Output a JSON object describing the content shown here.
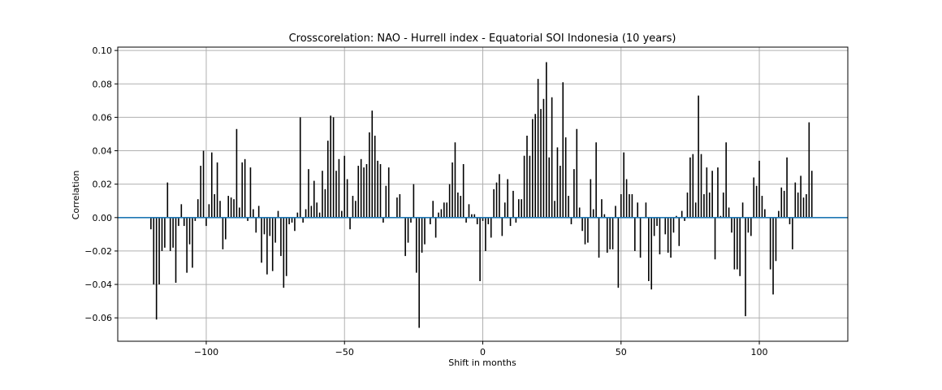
{
  "chart_data": {
    "type": "bar",
    "title": "Crosscorelation: NAO - Hurrell index - Equatorial SOI Indonesia (10 years)",
    "xlabel": "Shift in months",
    "ylabel": "Correlation",
    "xlim": [
      -132,
      132
    ],
    "ylim": [
      -0.074,
      0.102
    ],
    "grid": true,
    "x_ticks": [
      -100,
      -50,
      0,
      50,
      100
    ],
    "x_tick_labels": [
      "−100",
      "−50",
      "0",
      "50",
      "100"
    ],
    "y_ticks": [
      -0.06,
      -0.04,
      -0.02,
      0.0,
      0.02,
      0.04,
      0.06,
      0.08,
      0.1
    ],
    "y_tick_labels": [
      "−0.06",
      "−0.04",
      "−0.02",
      "0.00",
      "0.02",
      "0.04",
      "0.06",
      "0.08",
      "0.10"
    ],
    "bar_color": "#000000",
    "zero_line_color": "#1f77b4",
    "x_start": -120,
    "values": [
      -0.007,
      -0.04,
      -0.061,
      -0.04,
      -0.02,
      -0.018,
      0.021,
      -0.02,
      -0.018,
      -0.039,
      -0.005,
      0.008,
      -0.005,
      -0.033,
      -0.016,
      -0.03,
      -0.002,
      0.011,
      0.031,
      0.04,
      -0.005,
      0.008,
      0.039,
      0.014,
      0.033,
      0.01,
      -0.019,
      -0.013,
      0.013,
      0.012,
      0.011,
      0.053,
      0.006,
      0.033,
      0.035,
      -0.002,
      0.03,
      0.005,
      -0.009,
      0.007,
      -0.027,
      -0.01,
      -0.034,
      -0.011,
      -0.032,
      -0.015,
      0.004,
      -0.023,
      -0.042,
      -0.035,
      -0.004,
      -0.003,
      -0.008,
      0.003,
      0.06,
      -0.003,
      0.005,
      0.029,
      0.007,
      0.022,
      0.009,
      0.003,
      0.028,
      0.017,
      0.046,
      0.061,
      0.06,
      0.028,
      0.035,
      0.004,
      0.037,
      0.023,
      -0.007,
      0.013,
      0.01,
      0.031,
      0.035,
      0.03,
      0.032,
      0.051,
      0.064,
      0.049,
      0.034,
      0.032,
      -0.003,
      0.019,
      0.03,
      0.0,
      0.0,
      0.012,
      0.014,
      0.0,
      -0.023,
      -0.015,
      -0.003,
      0.02,
      -0.033,
      -0.066,
      -0.021,
      -0.016,
      0.0,
      -0.004,
      0.01,
      -0.012,
      0.003,
      0.005,
      0.009,
      0.009,
      0.02,
      0.033,
      0.045,
      0.015,
      0.013,
      0.032,
      -0.003,
      0.008,
      0.002,
      0.002,
      -0.004,
      -0.038,
      -0.002,
      -0.02,
      -0.004,
      -0.012,
      0.017,
      0.021,
      0.026,
      -0.011,
      0.009,
      0.023,
      -0.005,
      0.016,
      -0.003,
      0.011,
      0.011,
      0.037,
      0.049,
      0.037,
      0.059,
      0.062,
      0.083,
      0.065,
      0.071,
      0.093,
      0.036,
      0.072,
      0.01,
      0.042,
      0.031,
      0.081,
      0.048,
      0.013,
      -0.004,
      0.029,
      0.053,
      0.006,
      -0.008,
      -0.016,
      -0.015,
      0.023,
      0.005,
      0.045,
      -0.024,
      0.011,
      0.002,
      -0.021,
      -0.019,
      -0.019,
      0.007,
      -0.042,
      0.014,
      0.039,
      0.023,
      0.014,
      0.014,
      -0.02,
      0.009,
      -0.024,
      0.0,
      0.009,
      -0.038,
      -0.043,
      -0.011,
      -0.005,
      -0.022,
      0.0,
      -0.01,
      -0.021,
      -0.024,
      -0.009,
      0.001,
      -0.017,
      0.004,
      -0.002,
      0.015,
      0.036,
      0.038,
      0.009,
      0.073,
      0.038,
      0.014,
      0.03,
      0.015,
      0.028,
      -0.025,
      0.03,
      0.001,
      0.015,
      0.045,
      0.006,
      -0.009,
      -0.031,
      -0.031,
      -0.035,
      0.009,
      -0.059,
      -0.009,
      -0.011,
      0.024,
      0.019,
      0.034,
      0.013,
      0.005,
      0.0,
      -0.031,
      -0.046,
      -0.026,
      0.004,
      0.018,
      0.016,
      0.036,
      -0.004,
      -0.019,
      0.021,
      0.015,
      0.025,
      0.012,
      0.014,
      0.057,
      0.028
    ]
  }
}
